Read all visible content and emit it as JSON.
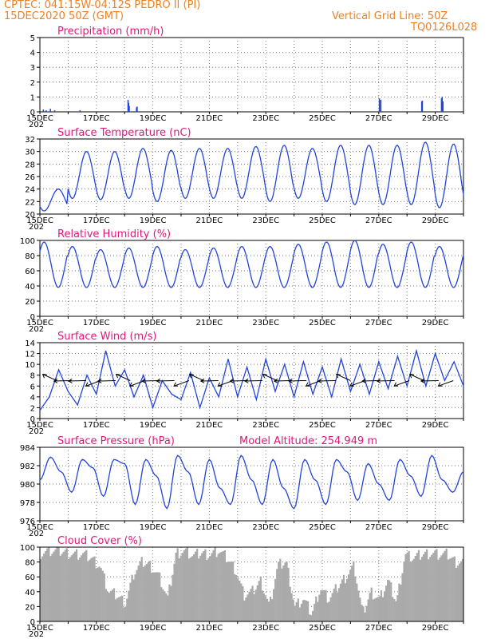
{
  "header": {
    "line1": "CPTEC:   041:15W-04:12S   PEDRO II (PI)",
    "line2": "15DEC2020 50Z (GMT)",
    "grid_note": "Vertical Grid Line: 50Z",
    "model_code": "TQ0126L028"
  },
  "colors": {
    "line": "#2244dd",
    "title": "#e0187a",
    "header": "#f08020",
    "cloud": "#aaaaaa"
  },
  "x_ticks": [
    "15DEC",
    "17DEC",
    "19DEC",
    "21DEC",
    "23DEC",
    "25DEC",
    "27DEC",
    "29DEC"
  ],
  "x_sublabel": "202",
  "chart_data": [
    {
      "type": "bar",
      "title": "Precipitation (mm/h)",
      "ylim": [
        0,
        5
      ],
      "yticks": [
        "0",
        "1",
        "2",
        "3",
        "4",
        "5"
      ],
      "x_days_since_15DEC": [
        0.1,
        0.2,
        0.35,
        0.5,
        1.4,
        3.1,
        3.12,
        3.14,
        3.4,
        3.42,
        12.0,
        12.05,
        13.5,
        13.52,
        14.2,
        14.22,
        14.25
      ],
      "values": [
        0.15,
        0.1,
        0.2,
        0.1,
        0.1,
        0.8,
        0.6,
        0.4,
        0.3,
        0.35,
        0.9,
        0.8,
        0.7,
        0.75,
        0.9,
        1.0,
        0.7
      ]
    },
    {
      "type": "line",
      "title": "Surface Temperature (nC)",
      "ylim": [
        20,
        32
      ],
      "yticks": [
        "20",
        "22",
        "24",
        "26",
        "28",
        "30",
        "32"
      ],
      "series": [
        {
          "name": "",
          "min": [
            20.5,
            22.8,
            22.5,
            21.5,
            22.3,
            23.0,
            22.5,
            21.5,
            22.0,
            21.0,
            22.5,
            21.7,
            22.5,
            21.0,
            22.5,
            21.3,
            22.0,
            21.0,
            22.5,
            21.0,
            22.0,
            20.5,
            21.5,
            20.6,
            21.5,
            21.2,
            21.5,
            21.0,
            21.0,
            20.5,
            21.0
          ],
          "max": [
            24.0,
            30.0,
            30.0,
            30.5,
            30.0,
            30.2,
            30.5,
            30.0,
            30.2,
            30.5,
            30.5,
            30.0,
            30.5,
            29.5,
            30.8,
            30.0,
            31.0,
            30.3,
            30.5,
            30.0,
            31.0,
            29.8,
            31.0,
            29.8,
            31.0,
            30.5,
            31.5,
            30.5,
            31.2,
            30.8,
            31.0
          ]
        }
      ]
    },
    {
      "type": "line",
      "title": "Relative Humidity (%)",
      "ylim": [
        0,
        100
      ],
      "yticks": [
        "0",
        "20",
        "40",
        "60",
        "80",
        "100"
      ],
      "series": [
        {
          "name": "",
          "max": [
            65,
            95,
            85,
            98,
            92,
            88,
            90,
            92,
            88,
            90,
            92,
            92,
            95,
            98,
            100,
            95,
            98,
            92,
            98,
            96,
            98,
            98,
            100,
            96
          ]
        }
      ]
    },
    {
      "type": "line",
      "title": "Surface Wind (m/s)",
      "ylim": [
        0,
        14
      ],
      "yticks": [
        "0",
        "2",
        "4",
        "6",
        "8",
        "10",
        "12",
        "14"
      ],
      "values": [
        1.5,
        4.0,
        9.0,
        5.0,
        2.5,
        8.0,
        4.5,
        12.5,
        6.0,
        9.0,
        4.0,
        8.0,
        2.0,
        7.0,
        4.5,
        3.5,
        8.5,
        2.0,
        7.5,
        4.0,
        11.0,
        4.0,
        9.5,
        3.5,
        11.0,
        5.0,
        10.0,
        4.0,
        10.5,
        4.5,
        9.5,
        4.0,
        11.0,
        5.0,
        10.0,
        4.5,
        10.5,
        5.5,
        11.5,
        6.0,
        12.5,
        6.0,
        12.0,
        7.0,
        10.5,
        6.0
      ]
    },
    {
      "type": "line",
      "title": "Surface Pressure (hPa)",
      "annotation": "Model Altitude: 254.949  m",
      "ylim": [
        976,
        985
      ],
      "yticks": [
        "976",
        "978",
        "980",
        "982",
        "984"
      ],
      "values": [
        981.0,
        983.8,
        982.0,
        979.5,
        983.5,
        982.5,
        979.0,
        983.5,
        983.0,
        978.0,
        983.5,
        981.5,
        977.5,
        984.0,
        982.0,
        978.0,
        983.5,
        980.0,
        978.0,
        984.0,
        981.0,
        978.0,
        983.5,
        980.0,
        977.5,
        983.5,
        981.0,
        978.0,
        983.5,
        982.0,
        978.5,
        983.0,
        980.5,
        978.5,
        983.5,
        981.5,
        979.0,
        984.0,
        981.0,
        979.5,
        982.0
      ]
    },
    {
      "type": "area",
      "title": "Cloud Cover (%)",
      "ylim": [
        0,
        100
      ],
      "yticks": [
        "0",
        "20",
        "40",
        "60",
        "80",
        "100"
      ],
      "levels_per_half_day": [
        92,
        95,
        95,
        93,
        90,
        90,
        85,
        75,
        40,
        35,
        25,
        65,
        80,
        75,
        60,
        30,
        92,
        95,
        88,
        92,
        90,
        95,
        85,
        70,
        35,
        40,
        55,
        20,
        75,
        80,
        20,
        30,
        10,
        45,
        30,
        45,
        60,
        75,
        10,
        40,
        30,
        55,
        25,
        90,
        85,
        90,
        92,
        90,
        90,
        80
      ]
    }
  ]
}
